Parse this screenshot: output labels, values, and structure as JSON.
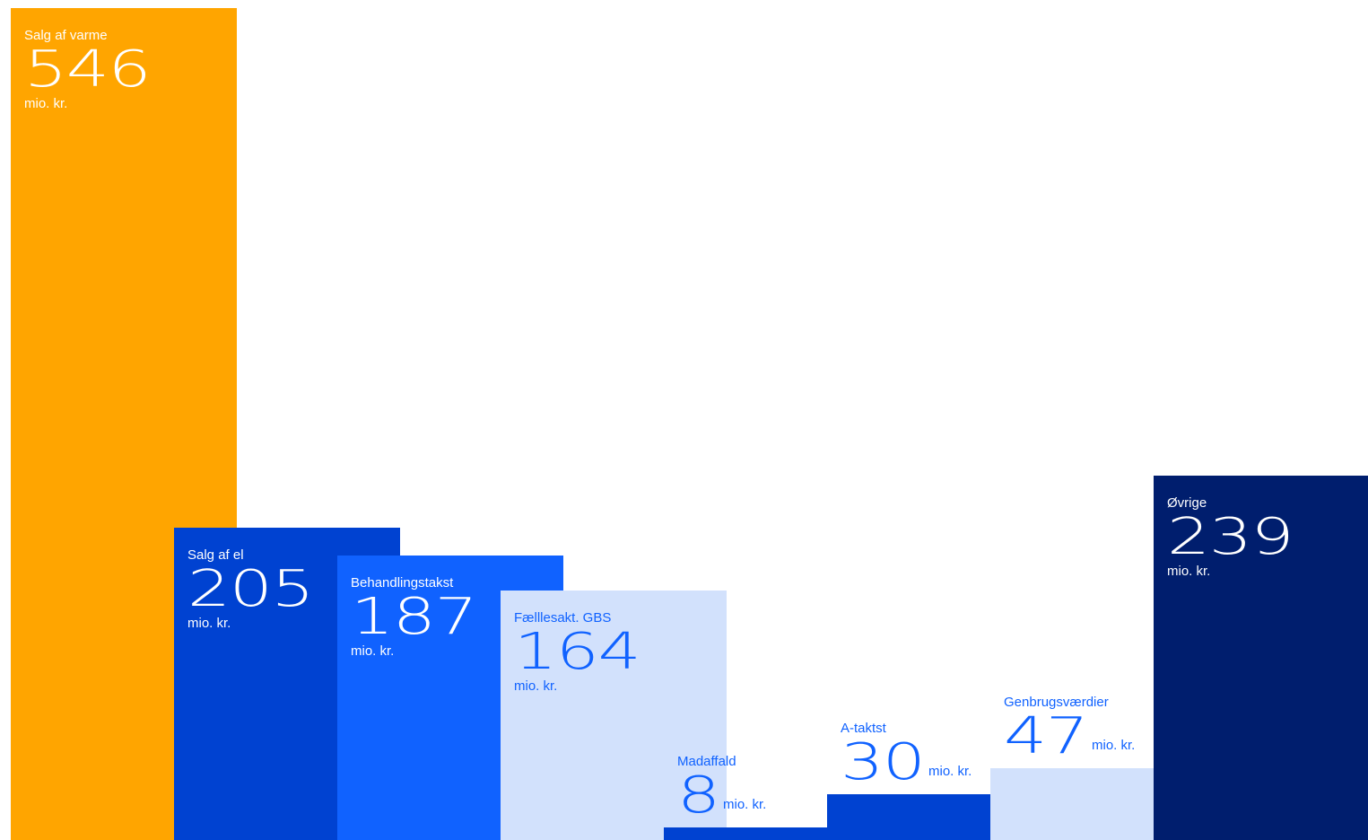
{
  "chart_data": {
    "type": "bar",
    "unit": "mio. kr.",
    "categories": [
      "Salg af varme",
      "Salg af el",
      "Behandlingstakst",
      "Fælllesakt. GBS",
      "Madaffald",
      "A-taktst",
      "Genbrugsværdier",
      "Øvrige"
    ],
    "values": [
      546,
      205,
      187,
      164,
      8,
      30,
      47,
      239
    ],
    "colors": [
      "#FFA500",
      "#0042D1",
      "#1062FF",
      "#D2E1FC",
      "#0042D1",
      "#0042D1",
      "#D2E1FC",
      "#001E6E"
    ],
    "label_colors": [
      "#FFFFFF",
      "#FFFFFF",
      "#FFFFFF",
      "#1062FF",
      "#1062FF",
      "#1062FF",
      "#1062FF",
      "#FFFFFF"
    ],
    "ylim": [
      0,
      546
    ],
    "grid": false,
    "legend": "none"
  }
}
